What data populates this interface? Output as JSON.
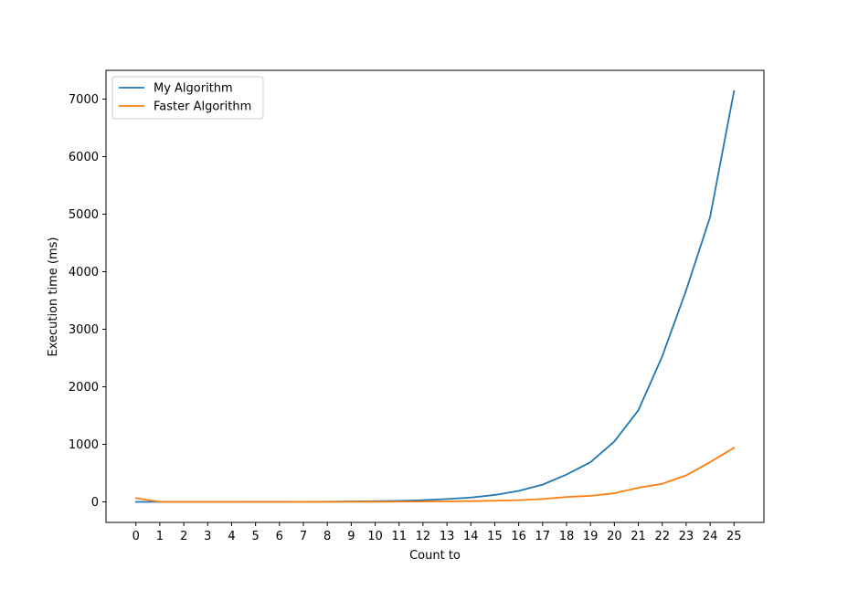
{
  "chart_data": {
    "type": "line",
    "title": "",
    "xlabel": "Count to",
    "ylabel": "Execution time (ms)",
    "x": [
      0,
      1,
      2,
      3,
      4,
      5,
      6,
      7,
      8,
      9,
      10,
      11,
      12,
      13,
      14,
      15,
      16,
      17,
      18,
      19,
      20,
      21,
      22,
      23,
      24,
      25
    ],
    "xlim": [
      -1.25,
      26.25
    ],
    "ylim": [
      -357,
      7500
    ],
    "yticks": [
      0,
      1000,
      2000,
      3000,
      4000,
      5000,
      6000,
      7000
    ],
    "grid": false,
    "legend_position": "upper-left",
    "series": [
      {
        "name": "My Algorithm",
        "color": "#1f77b4",
        "values": [
          0,
          0,
          0,
          0,
          0,
          1,
          1,
          2,
          4,
          7,
          11,
          18,
          30,
          50,
          75,
          120,
          190,
          300,
          475,
          690,
          1050,
          1590,
          2530,
          3680,
          4950,
          7140
        ]
      },
      {
        "name": "Faster Algorithm",
        "color": "#ff7f0e",
        "values": [
          65,
          0,
          0,
          0,
          0,
          0,
          0,
          1,
          1,
          2,
          3,
          4,
          6,
          8,
          13,
          20,
          30,
          50,
          85,
          105,
          150,
          245,
          315,
          460,
          690,
          940
        ]
      }
    ]
  }
}
